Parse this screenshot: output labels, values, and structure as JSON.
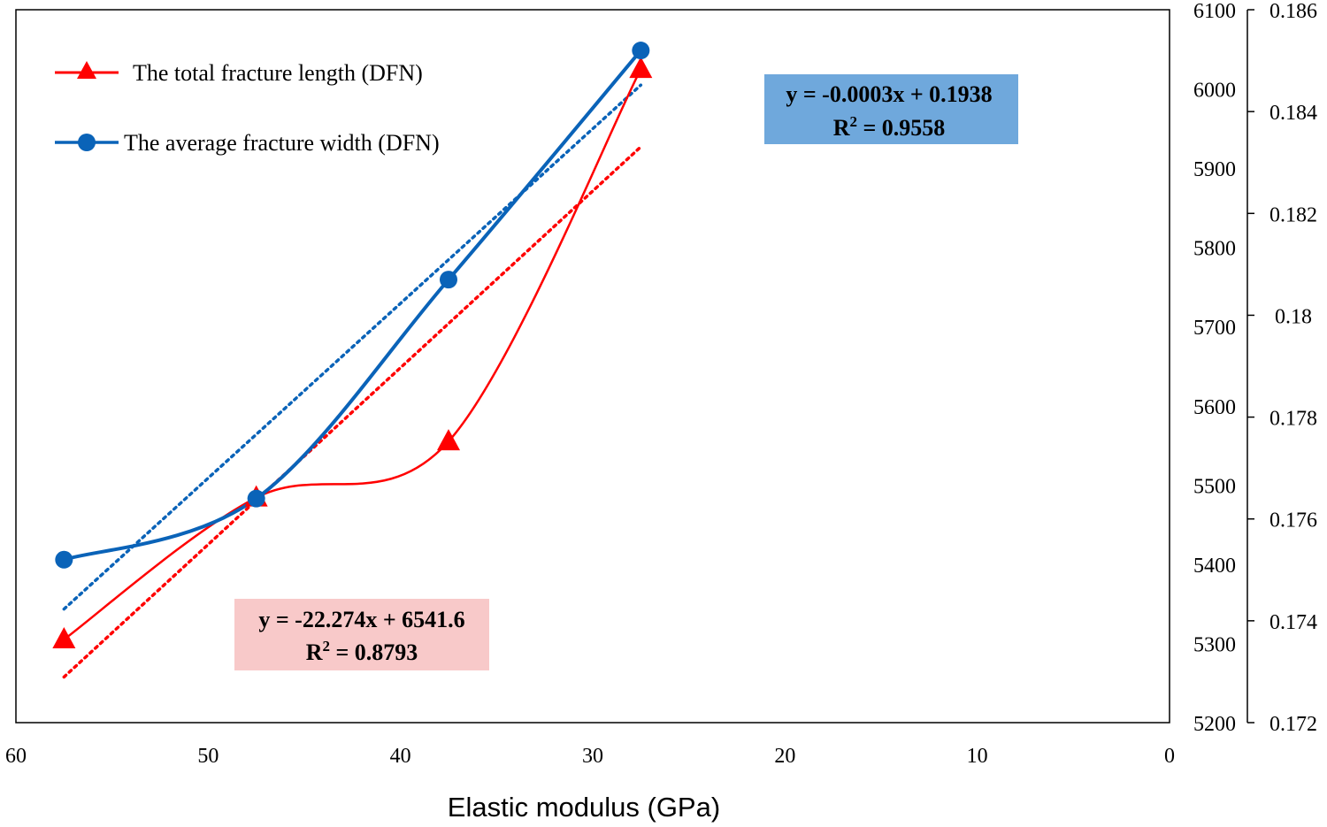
{
  "chart_data": {
    "type": "line",
    "title": "",
    "xlabel": "Elastic modulus  (GPa)",
    "x_reversed": true,
    "xlim": [
      0,
      60
    ],
    "x_ticks": [
      "60",
      "50",
      "40",
      "30",
      "20",
      "10",
      "0"
    ],
    "x_tick_values": [
      60,
      50,
      40,
      30,
      20,
      10,
      0
    ],
    "y_left_lim": [
      5200,
      6100
    ],
    "y_left_ticks": [
      "6100",
      "6000",
      "5900",
      "5800",
      "5700",
      "5600",
      "5500",
      "5400",
      "5300",
      "5200"
    ],
    "y_left_tick_values": [
      6100,
      6000,
      5900,
      5800,
      5700,
      5600,
      5500,
      5400,
      5300,
      5200
    ],
    "y_right_lim": [
      0.172,
      0.186
    ],
    "y_right_ticks": [
      "0.186",
      "0.184",
      "0.182",
      "0.18",
      "0.178",
      "0.176",
      "0.174",
      "0.172"
    ],
    "y_right_tick_values": [
      0.186,
      0.184,
      0.182,
      0.18,
      0.178,
      0.176,
      0.174,
      0.172
    ],
    "x": [
      57.5,
      47.5,
      37.5,
      27.5
    ],
    "series": [
      {
        "name": "The total fracture length (DFN)",
        "axis": "left",
        "color": "#ff0000",
        "marker": "triangle",
        "values": [
          5305,
          5484,
          5555,
          6025
        ]
      },
      {
        "name": "The average fracture width (DFN)",
        "axis": "right",
        "color": "#0a63b8",
        "marker": "circle",
        "values": [
          0.1752,
          0.1764,
          0.1807,
          0.1852
        ]
      }
    ],
    "trendlines": [
      {
        "series": "The total fracture length (DFN)",
        "equation": "y = -22.274x + 6541.6",
        "r2_label": "R",
        "r2_value": " = 0.8793",
        "box_color": "#f8c9c9",
        "color": "#ff0000"
      },
      {
        "series": "The average fracture width (DFN)",
        "equation": "y = -0.0003x + 0.1938",
        "r2_label": "R",
        "r2_value": " = 0.9558",
        "box_color": "#6fa8dc",
        "color": "#0a63b8"
      }
    ],
    "legend_position": "top-left",
    "grid": false
  }
}
